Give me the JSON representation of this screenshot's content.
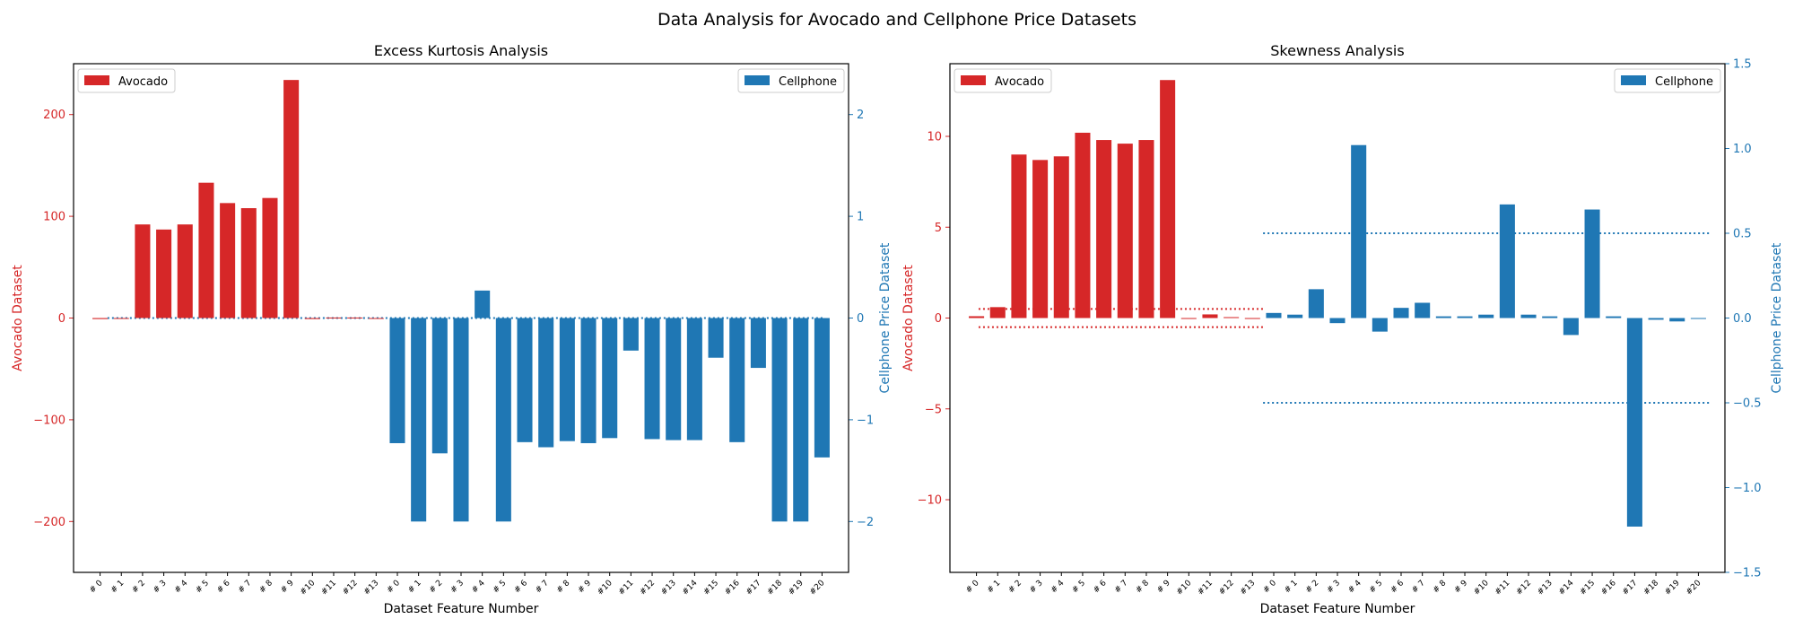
{
  "suptitle": "Data Analysis for Avocado and Cellphone Price Datasets",
  "colors": {
    "avocado": "#d62728",
    "cellphone": "#1f77b4"
  },
  "chart_data": [
    {
      "type": "bar",
      "title": "Excess Kurtosis Analysis",
      "xlabel": "Dataset Feature Number",
      "ylabel_left": "Avocado Dataset",
      "ylabel_right": "Cellphone Price Dataset",
      "ylim_left": [
        -250,
        250
      ],
      "ylim_right": [
        -2.5,
        2.5
      ],
      "yticks_left": [
        -200,
        -100,
        0,
        100,
        200
      ],
      "yticks_right": [
        -2,
        -1,
        0,
        1,
        2
      ],
      "grid": false,
      "legend": [
        {
          "label": "Avocado",
          "loc": "upper-left"
        },
        {
          "label": "Cellphone",
          "loc": "upper-right"
        }
      ],
      "series": [
        {
          "name": "Avocado",
          "axis": "left",
          "categories": [
            "# 0",
            "# 1",
            "# 2",
            "# 3",
            "# 4",
            "# 5",
            "# 6",
            "# 7",
            "# 8",
            "# 9",
            "#10",
            "#11",
            "#12",
            "#13"
          ],
          "values": [
            -1,
            0,
            92,
            87,
            92,
            133,
            113,
            108,
            118,
            234,
            -1,
            0.5,
            0.5,
            0
          ]
        },
        {
          "name": "Cellphone",
          "axis": "right",
          "categories": [
            "# 0",
            "# 1",
            "# 2",
            "# 3",
            "# 4",
            "# 5",
            "# 6",
            "# 7",
            "# 8",
            "# 9",
            "#10",
            "#11",
            "#12",
            "#13",
            "#14",
            "#15",
            "#16",
            "#17",
            "#18",
            "#19",
            "#20"
          ],
          "values": [
            -1.23,
            -2.0,
            -1.33,
            -2.0,
            0.27,
            -2.0,
            -1.22,
            -1.27,
            -1.21,
            -1.23,
            -1.18,
            -0.32,
            -1.19,
            -1.2,
            -1.2,
            -0.39,
            -1.22,
            -0.49,
            -2.0,
            -2.0,
            -1.37
          ]
        }
      ],
      "reference_lines": [
        {
          "axis": "right",
          "value": 0,
          "style": "dotted",
          "color": "cellphone"
        }
      ]
    },
    {
      "type": "bar",
      "title": "Skewness Analysis",
      "xlabel": "Dataset Feature Number",
      "ylabel_left": "Avocado Dataset",
      "ylabel_right": "Cellphone Price Dataset",
      "ylim_left": [
        -14,
        14
      ],
      "ylim_right": [
        -1.5,
        1.5
      ],
      "yticks_left": [
        -10,
        -5,
        0,
        5,
        10
      ],
      "yticks_right": [
        -1.5,
        -1.0,
        -0.5,
        0.0,
        0.5,
        1.0,
        1.5
      ],
      "grid": false,
      "legend": [
        {
          "label": "Avocado",
          "loc": "upper-left"
        },
        {
          "label": "Cellphone",
          "loc": "upper-right"
        }
      ],
      "series": [
        {
          "name": "Avocado",
          "axis": "left",
          "categories": [
            "# 0",
            "# 1",
            "# 2",
            "# 3",
            "# 4",
            "# 5",
            "# 6",
            "# 7",
            "# 8",
            "# 9",
            "#10",
            "#11",
            "#12",
            "#13"
          ],
          "values": [
            0.1,
            0.6,
            9.0,
            8.7,
            8.9,
            10.2,
            9.8,
            9.6,
            9.8,
            13.1,
            0.0,
            0.2,
            0.05,
            0.0
          ]
        },
        {
          "name": "Cellphone",
          "axis": "right",
          "categories": [
            "# 0",
            "# 1",
            "# 2",
            "# 3",
            "# 4",
            "# 5",
            "# 6",
            "# 7",
            "# 8",
            "# 9",
            "#10",
            "#11",
            "#12",
            "#13",
            "#14",
            "#15",
            "#16",
            "#17",
            "#18",
            "#19",
            "#20"
          ],
          "values": [
            0.03,
            0.02,
            0.17,
            -0.03,
            1.02,
            -0.08,
            0.06,
            0.09,
            0.01,
            0.01,
            0.02,
            0.67,
            0.02,
            0.01,
            -0.1,
            0.64,
            0.01,
            -1.23,
            -0.01,
            -0.02,
            0.0
          ]
        }
      ],
      "reference_lines": [
        {
          "axis": "left",
          "value": 0.5,
          "style": "dotted",
          "color": "avocado"
        },
        {
          "axis": "left",
          "value": -0.5,
          "style": "dotted",
          "color": "avocado"
        },
        {
          "axis": "right",
          "value": 0.5,
          "style": "dotted",
          "color": "cellphone"
        },
        {
          "axis": "right",
          "value": -0.5,
          "style": "dotted",
          "color": "cellphone"
        }
      ]
    }
  ]
}
